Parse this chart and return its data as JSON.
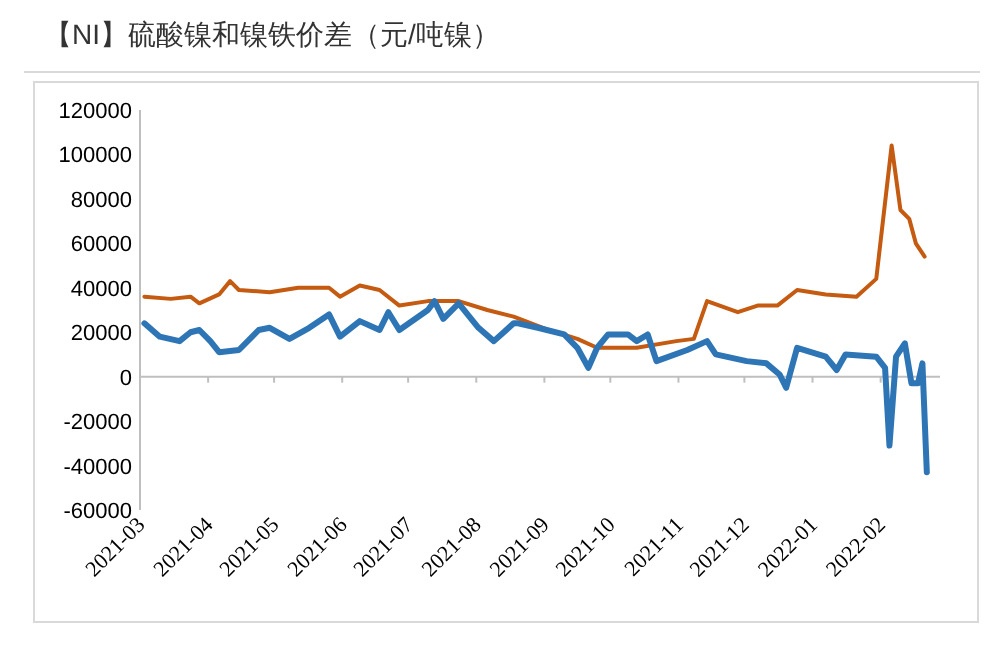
{
  "chart_data": {
    "type": "line",
    "title": "【NI】硫酸镍和镍铁价差（元/吨镍）",
    "xlim": [
      "2021-03-01",
      "2022-02-28"
    ],
    "xticks": [
      "2021-03",
      "2021-04",
      "2021-05",
      "2021-06",
      "2021-07",
      "2021-08",
      "2021-09",
      "2021-10",
      "2021-11",
      "2021-12",
      "2022-01",
      "2022-02"
    ],
    "ylim": [
      -60000,
      120000
    ],
    "yticks": [
      -60000,
      -40000,
      -20000,
      0,
      20000,
      40000,
      60000,
      80000,
      100000,
      120000
    ],
    "ref_lines": [
      {
        "axis": "y",
        "value": 0,
        "color": "#bfbfbf"
      }
    ],
    "marker": "none",
    "line_style": "solid",
    "series": [
      {
        "color": "#c55a11",
        "x": [
          "2021-03-03",
          "2021-03-15",
          "2021-03-24",
          "2021-03-28",
          "2021-04-06",
          "2021-04-11",
          "2021-04-15",
          "2021-04-29",
          "2021-05-12",
          "2021-05-26",
          "2021-05-31",
          "2021-06-09",
          "2021-06-18",
          "2021-06-27",
          "2021-07-10",
          "2021-07-24",
          "2021-08-06",
          "2021-08-18",
          "2021-09-03",
          "2021-09-16",
          "2021-09-25",
          "2021-10-13",
          "2021-10-31",
          "2021-11-08",
          "2021-11-14",
          "2021-11-28",
          "2021-12-07",
          "2021-12-16",
          "2021-12-25",
          "2022-01-07",
          "2022-01-21",
          "2022-01-30",
          "2022-02-06",
          "2022-02-10",
          "2022-02-14",
          "2022-02-17",
          "2022-02-21"
        ],
        "values": [
          36000,
          35000,
          36000,
          33000,
          37000,
          43000,
          39000,
          38000,
          40000,
          40000,
          36000,
          41000,
          39000,
          32000,
          34000,
          34000,
          30000,
          27000,
          21000,
          17000,
          13000,
          13000,
          16000,
          17000,
          34000,
          29000,
          32000,
          32000,
          39000,
          37000,
          36000,
          44000,
          104000,
          75000,
          71000,
          60000,
          54000
        ]
      },
      {
        "color": "#2e75b6",
        "x": [
          "2021-03-03",
          "2021-03-10",
          "2021-03-19",
          "2021-03-24",
          "2021-03-28",
          "2021-04-02",
          "2021-04-06",
          "2021-04-15",
          "2021-04-24",
          "2021-04-29",
          "2021-05-08",
          "2021-05-17",
          "2021-05-26",
          "2021-05-31",
          "2021-06-09",
          "2021-06-18",
          "2021-06-22",
          "2021-06-27",
          "2021-07-10",
          "2021-07-13",
          "2021-07-17",
          "2021-07-24",
          "2021-08-02",
          "2021-08-09",
          "2021-08-18",
          "2021-08-20",
          "2021-08-29",
          "2021-09-10",
          "2021-09-16",
          "2021-09-21",
          "2021-09-25",
          "2021-09-30",
          "2021-10-09",
          "2021-10-13",
          "2021-10-18",
          "2021-10-22",
          "2021-11-05",
          "2021-11-14",
          "2021-11-18",
          "2021-12-02",
          "2021-12-11",
          "2021-12-17",
          "2021-12-20",
          "2021-12-25",
          "2022-01-07",
          "2022-01-12",
          "2022-01-16",
          "2022-01-30",
          "2022-02-03",
          "2022-02-05",
          "2022-02-08",
          "2022-02-12",
          "2022-02-15",
          "2022-02-18",
          "2022-02-20",
          "2022-02-22"
        ],
        "values": [
          24000,
          18000,
          16000,
          20000,
          21000,
          16000,
          11000,
          12000,
          21000,
          22000,
          17000,
          22000,
          28000,
          18000,
          25000,
          21000,
          29000,
          21000,
          30000,
          34000,
          26000,
          33000,
          22000,
          16000,
          24000,
          24000,
          22000,
          19000,
          13000,
          4000,
          13000,
          19000,
          19000,
          16000,
          19000,
          7000,
          12000,
          16000,
          10000,
          7000,
          6000,
          1000,
          -5000,
          13000,
          9000,
          3000,
          10000,
          9000,
          4000,
          -31000,
          9000,
          15000,
          -3000,
          -3000,
          6000,
          -43000
        ]
      }
    ]
  }
}
